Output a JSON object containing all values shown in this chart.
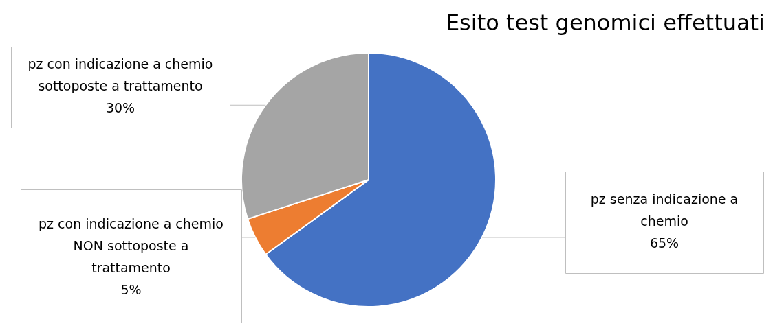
{
  "chart_data": {
    "type": "pie",
    "title": "Esito test genomici effettuati",
    "categories": [
      "pz senza indicazione a chemio",
      "pz con indicazione a chemio NON sottoposte a trattamento",
      "pz con indicazione a chemio sottoposte a trattamento"
    ],
    "values": [
      65,
      5,
      30
    ],
    "colors": [
      "#4472c4",
      "#ed7d31",
      "#a5a5a5"
    ],
    "value_labels": [
      "65%",
      "5%",
      "30%"
    ],
    "legend": false
  }
}
